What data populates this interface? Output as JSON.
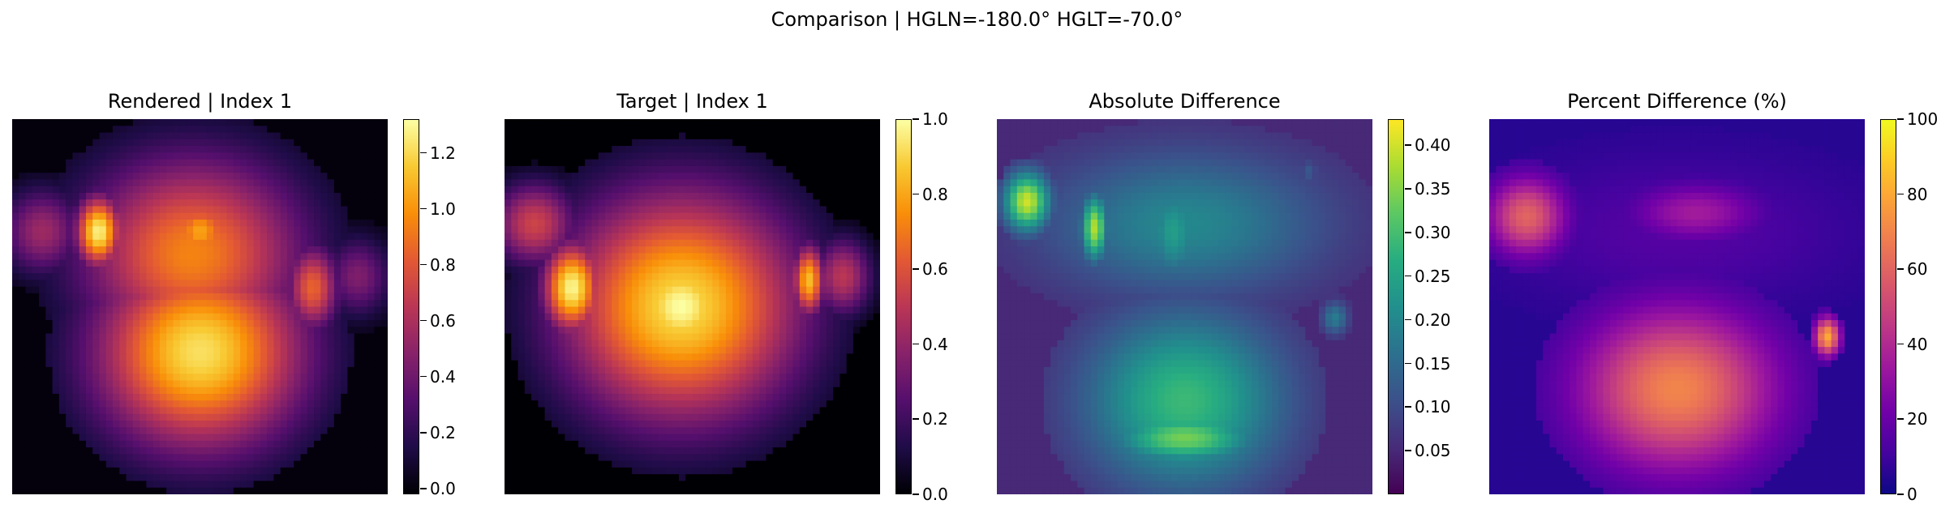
{
  "figure": {
    "suptitle": "Comparison | HGLN=-180.0° HGLT=-70.0°"
  },
  "chart_data": [
    {
      "type": "heatmap",
      "title": "Rendered | Index 1",
      "colormap": "inferno",
      "colorbar": {
        "vmin": -0.02,
        "vmax": 1.32,
        "ticks": [
          0.0,
          0.2,
          0.4,
          0.6,
          0.8,
          1.0,
          1.2
        ],
        "tick_labels": [
          "0.0",
          "0.2",
          "0.4",
          "0.6",
          "0.8",
          "1.0",
          "1.2"
        ]
      },
      "blobs": [
        {
          "cx": 0.5,
          "cy": 0.62,
          "rx": 0.32,
          "ry": 0.3,
          "value": 1.22
        },
        {
          "cx": 0.48,
          "cy": 0.36,
          "rx": 0.34,
          "ry": 0.3,
          "value": 0.95
        },
        {
          "cx": 0.5,
          "cy": 0.3,
          "rx": 0.1,
          "ry": 0.1,
          "value": 1.05
        },
        {
          "cx": 0.23,
          "cy": 0.3,
          "rx": 0.07,
          "ry": 0.11,
          "value": 1.28
        },
        {
          "cx": 0.8,
          "cy": 0.45,
          "rx": 0.08,
          "ry": 0.13,
          "value": 0.85
        },
        {
          "cx": 0.08,
          "cy": 0.3,
          "rx": 0.12,
          "ry": 0.13,
          "value": 0.55
        },
        {
          "cx": 0.92,
          "cy": 0.42,
          "rx": 0.1,
          "ry": 0.12,
          "value": 0.45
        },
        {
          "cx": 0.5,
          "cy": 0.85,
          "rx": 0.2,
          "ry": 0.12,
          "value": 0.4
        }
      ],
      "background": 0.0
    },
    {
      "type": "heatmap",
      "title": "Target | Index 1",
      "colormap": "inferno",
      "colorbar": {
        "vmin": 0.0,
        "vmax": 1.0,
        "ticks": [
          0.0,
          0.2,
          0.4,
          0.6,
          0.8,
          1.0
        ],
        "tick_labels": [
          "0.0",
          "0.2",
          "0.4",
          "0.6",
          "0.8",
          "1.0"
        ]
      },
      "blobs": [
        {
          "cx": 0.47,
          "cy": 0.5,
          "rx": 0.37,
          "ry": 0.36,
          "value": 0.92
        },
        {
          "cx": 0.47,
          "cy": 0.5,
          "rx": 0.2,
          "ry": 0.2,
          "value": 1.0
        },
        {
          "cx": 0.18,
          "cy": 0.45,
          "rx": 0.09,
          "ry": 0.14,
          "value": 0.98
        },
        {
          "cx": 0.81,
          "cy": 0.43,
          "rx": 0.05,
          "ry": 0.11,
          "value": 0.85
        },
        {
          "cx": 0.08,
          "cy": 0.28,
          "rx": 0.13,
          "ry": 0.13,
          "value": 0.55
        },
        {
          "cx": 0.9,
          "cy": 0.42,
          "rx": 0.09,
          "ry": 0.12,
          "value": 0.5
        }
      ],
      "background": 0.0
    },
    {
      "type": "heatmap",
      "title": "Absolute Difference",
      "colormap": "viridis",
      "colorbar": {
        "vmin": 0.0,
        "vmax": 0.43,
        "ticks": [
          0.05,
          0.1,
          0.15,
          0.2,
          0.25,
          0.3,
          0.35,
          0.4
        ],
        "tick_labels": [
          "0.05",
          "0.10",
          "0.15",
          "0.20",
          "0.25",
          "0.30",
          "0.35",
          "0.40"
        ]
      },
      "blobs": [
        {
          "cx": 0.5,
          "cy": 0.75,
          "rx": 0.3,
          "ry": 0.27,
          "value": 0.29
        },
        {
          "cx": 0.5,
          "cy": 0.85,
          "rx": 0.22,
          "ry": 0.08,
          "value": 0.34
        },
        {
          "cx": 0.5,
          "cy": 0.28,
          "rx": 0.42,
          "ry": 0.22,
          "value": 0.2
        },
        {
          "cx": 0.47,
          "cy": 0.3,
          "rx": 0.08,
          "ry": 0.15,
          "value": 0.24
        },
        {
          "cx": 0.08,
          "cy": 0.22,
          "rx": 0.07,
          "ry": 0.09,
          "value": 0.4
        },
        {
          "cx": 0.26,
          "cy": 0.29,
          "rx": 0.04,
          "ry": 0.1,
          "value": 0.38
        },
        {
          "cx": 0.83,
          "cy": 0.14,
          "rx": 0.03,
          "ry": 0.04,
          "value": 0.12
        },
        {
          "cx": 0.9,
          "cy": 0.53,
          "rx": 0.04,
          "ry": 0.05,
          "value": 0.18
        }
      ],
      "background": 0.05
    },
    {
      "type": "heatmap",
      "title": "Percent Difference (%)",
      "colormap": "plasma",
      "colorbar": {
        "vmin": 0,
        "vmax": 100,
        "ticks": [
          0,
          20,
          40,
          60,
          80,
          100
        ],
        "tick_labels": [
          "0",
          "20",
          "40",
          "60",
          "80",
          "100"
        ]
      },
      "blobs": [
        {
          "cx": 0.5,
          "cy": 0.72,
          "rx": 0.3,
          "ry": 0.25,
          "value": 70
        },
        {
          "cx": 0.5,
          "cy": 0.62,
          "rx": 0.24,
          "ry": 0.14,
          "value": 28
        },
        {
          "cx": 0.5,
          "cy": 0.3,
          "rx": 0.5,
          "ry": 0.22,
          "value": 15
        },
        {
          "cx": 0.1,
          "cy": 0.26,
          "rx": 0.12,
          "ry": 0.12,
          "value": 60
        },
        {
          "cx": 0.55,
          "cy": 0.25,
          "rx": 0.2,
          "ry": 0.09,
          "value": 35
        },
        {
          "cx": 0.9,
          "cy": 0.58,
          "rx": 0.04,
          "ry": 0.06,
          "value": 80
        }
      ],
      "background": 5
    }
  ]
}
